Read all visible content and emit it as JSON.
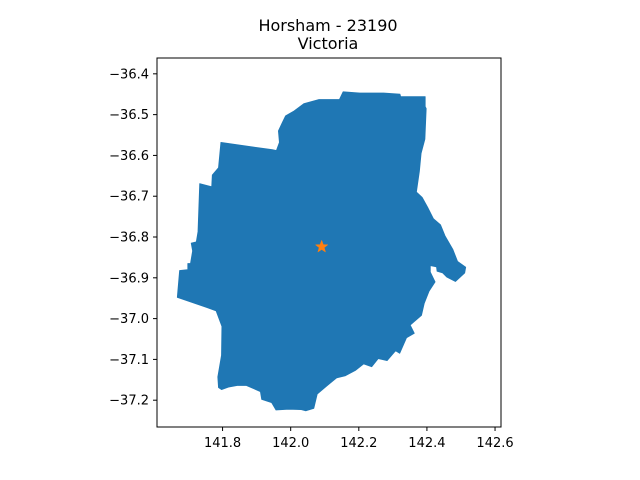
{
  "title_line1": "Horsham - 23190",
  "title_line2": "Victoria",
  "chart_data": {
    "type": "map",
    "x_ticks": [
      141.8,
      142.0,
      142.2,
      142.4,
      142.6
    ],
    "x_tick_labels": [
      "141.8",
      "142.0",
      "142.2",
      "142.4",
      "142.6"
    ],
    "y_ticks": [
      -36.4,
      -36.5,
      -36.6,
      -36.7,
      -36.8,
      -36.9,
      -37.0,
      -37.1,
      -37.2
    ],
    "y_tick_labels": [
      "−36.4",
      "−36.5",
      "−36.6",
      "−36.7",
      "−36.8",
      "−36.9",
      "−37.0",
      "−37.1",
      "−37.2"
    ],
    "xlim": [
      141.6075,
      142.6175
    ],
    "ylim": [
      -37.2657,
      -36.3612
    ],
    "grid": false,
    "region": {
      "name": "Horsham",
      "fill_color": "#1f77b4",
      "outline": [
        [
          141.667,
          -36.948
        ],
        [
          141.674,
          -36.882
        ],
        [
          141.698,
          -36.88
        ],
        [
          141.698,
          -36.865
        ],
        [
          141.706,
          -36.865
        ],
        [
          141.712,
          -36.834
        ],
        [
          141.708,
          -36.815
        ],
        [
          141.723,
          -36.812
        ],
        [
          141.728,
          -36.787
        ],
        [
          141.733,
          -36.669
        ],
        [
          141.768,
          -36.677
        ],
        [
          141.77,
          -36.648
        ],
        [
          141.788,
          -36.63
        ],
        [
          141.795,
          -36.568
        ],
        [
          141.946,
          -36.586
        ],
        [
          141.958,
          -36.588
        ],
        [
          141.967,
          -36.568
        ],
        [
          141.964,
          -36.54
        ],
        [
          141.975,
          -36.52
        ],
        [
          141.985,
          -36.503
        ],
        [
          142.01,
          -36.491
        ],
        [
          142.039,
          -36.473
        ],
        [
          142.083,
          -36.463
        ],
        [
          142.143,
          -36.463
        ],
        [
          142.154,
          -36.444
        ],
        [
          142.203,
          -36.447
        ],
        [
          142.273,
          -36.447
        ],
        [
          142.321,
          -36.45
        ],
        [
          142.323,
          -36.456
        ],
        [
          142.395,
          -36.456
        ],
        [
          142.395,
          -36.48
        ],
        [
          142.398,
          -36.485
        ],
        [
          142.394,
          -36.56
        ],
        [
          142.383,
          -36.595
        ],
        [
          142.378,
          -36.639
        ],
        [
          142.369,
          -36.69
        ],
        [
          142.386,
          -36.703
        ],
        [
          142.402,
          -36.727
        ],
        [
          142.419,
          -36.755
        ],
        [
          142.44,
          -36.77
        ],
        [
          142.453,
          -36.797
        ],
        [
          142.476,
          -36.83
        ],
        [
          142.49,
          -36.86
        ],
        [
          142.514,
          -36.874
        ],
        [
          142.511,
          -36.888
        ],
        [
          142.484,
          -36.909
        ],
        [
          142.458,
          -36.898
        ],
        [
          142.446,
          -36.888
        ],
        [
          142.43,
          -36.884
        ],
        [
          142.428,
          -36.873
        ],
        [
          142.41,
          -36.87
        ],
        [
          142.41,
          -36.886
        ],
        [
          142.424,
          -36.91
        ],
        [
          142.406,
          -36.933
        ],
        [
          142.392,
          -36.963
        ],
        [
          142.384,
          -36.992
        ],
        [
          142.351,
          -37.016
        ],
        [
          142.363,
          -37.036
        ],
        [
          142.34,
          -37.047
        ],
        [
          142.32,
          -37.085
        ],
        [
          142.308,
          -37.079
        ],
        [
          142.283,
          -37.103
        ],
        [
          142.257,
          -37.098
        ],
        [
          142.238,
          -37.118
        ],
        [
          142.214,
          -37.111
        ],
        [
          142.19,
          -37.127
        ],
        [
          142.161,
          -37.14
        ],
        [
          142.135,
          -37.145
        ],
        [
          142.106,
          -37.165
        ],
        [
          142.078,
          -37.185
        ],
        [
          142.068,
          -37.22
        ],
        [
          142.045,
          -37.226
        ],
        [
          142.031,
          -37.223
        ],
        [
          141.994,
          -37.222
        ],
        [
          141.957,
          -37.224
        ],
        [
          141.944,
          -37.206
        ],
        [
          141.915,
          -37.198
        ],
        [
          141.911,
          -37.179
        ],
        [
          141.87,
          -37.164
        ],
        [
          141.843,
          -37.164
        ],
        [
          141.817,
          -37.168
        ],
        [
          141.797,
          -37.174
        ],
        [
          141.788,
          -37.169
        ],
        [
          141.786,
          -37.143
        ],
        [
          141.797,
          -37.09
        ],
        [
          141.798,
          -37.019
        ],
        [
          141.781,
          -36.981
        ],
        [
          141.755,
          -36.973
        ],
        [
          141.667,
          -36.948
        ]
      ]
    },
    "marker": {
      "x": 142.091,
      "y": -36.824,
      "symbol": "star",
      "color": "#ff7f0e"
    }
  }
}
